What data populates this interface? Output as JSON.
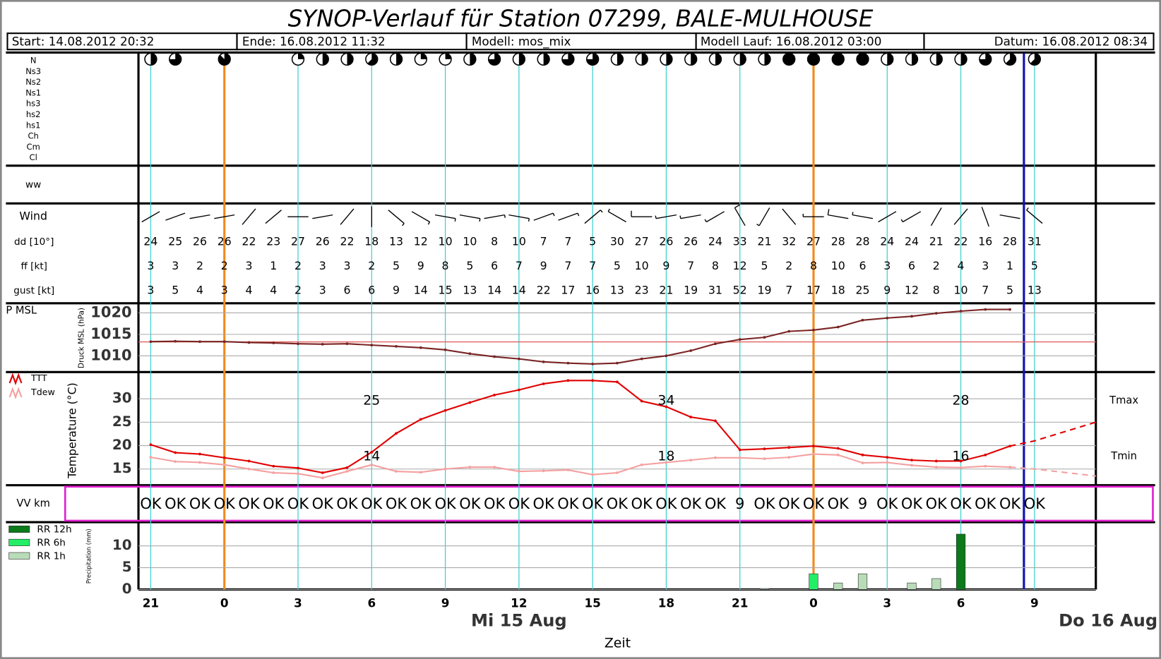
{
  "header": {
    "title": "SYNOP-Verlauf für Station 07299, BALE-MULHOUSE",
    "fields": [
      "Start: 14.08.2012 20:32",
      "Ende: 16.08.2012 11:32",
      "Modell: mos_mix",
      "Modell Lauf: 16.08.2012 03:00",
      "Datum: 16.08.2012 08:34"
    ]
  },
  "chart_data": {
    "type": "meteogram",
    "xlabel": "Zeit",
    "xlim": [
      -3.5,
      35.5
    ],
    "xticks": [
      {
        "value": -3,
        "label": "21"
      },
      0,
      3,
      6,
      9,
      12,
      15,
      18,
      21,
      {
        "value": 24,
        "label": "0"
      },
      {
        "value": 27,
        "label": "3"
      },
      {
        "value": 30,
        "label": "6"
      },
      {
        "value": 33,
        "label": "9"
      }
    ],
    "date_labels": [
      {
        "value": 12,
        "label": "Mi 15 Aug"
      },
      {
        "value": 36,
        "label": "Do 16 Aug"
      }
    ],
    "day_lines": [
      0,
      24
    ],
    "now": 32.57,
    "clouds": {
      "labels": [
        "N",
        "Ns3",
        "Ns2",
        "Ns1",
        "hs3",
        "hs2",
        "hs1",
        "Ch",
        "Cm",
        "Cl"
      ],
      "x": [
        -3,
        -2,
        0,
        3,
        4,
        5,
        6,
        7,
        8,
        9,
        10,
        11,
        12,
        13,
        14,
        15,
        16,
        17,
        18,
        19,
        20,
        21,
        22,
        23,
        24,
        25,
        26,
        27,
        28,
        29,
        30,
        31,
        32,
        33
      ],
      "N": [
        4,
        6,
        7,
        2,
        4,
        4,
        5,
        4,
        2,
        2,
        4,
        6,
        4,
        4,
        6,
        6,
        4,
        4,
        4,
        4,
        4,
        4,
        4,
        8,
        8,
        8,
        8,
        4,
        4,
        4,
        4,
        6,
        5,
        5
      ]
    },
    "ww": {
      "label": "ww"
    },
    "wind": {
      "label": "Wind",
      "rows": [
        "dd [10°]",
        "ff [kt]",
        "gust [kt]"
      ],
      "x": [
        -3,
        -2,
        -1,
        0,
        1,
        2,
        3,
        4,
        5,
        6,
        7,
        8,
        9,
        10,
        11,
        12,
        13,
        14,
        15,
        16,
        17,
        18,
        19,
        20,
        21,
        22,
        23,
        24,
        25,
        26,
        27,
        28,
        29,
        30,
        31,
        32,
        33
      ],
      "dd": [
        24,
        25,
        26,
        26,
        22,
        23,
        27,
        26,
        22,
        18,
        13,
        12,
        10,
        10,
        8,
        10,
        7,
        7,
        5,
        30,
        27,
        26,
        26,
        24,
        33,
        21,
        32,
        27,
        28,
        28,
        24,
        24,
        21,
        22,
        16,
        28,
        31
      ],
      "ff": [
        3,
        3,
        2,
        2,
        3,
        1,
        2,
        3,
        3,
        2,
        5,
        9,
        8,
        5,
        6,
        7,
        9,
        7,
        7,
        5,
        10,
        9,
        7,
        8,
        12,
        5,
        2,
        8,
        10,
        6,
        3,
        6,
        2,
        4,
        3,
        1,
        5
      ],
      "gust": [
        3,
        5,
        4,
        3,
        4,
        4,
        2,
        3,
        6,
        6,
        9,
        14,
        15,
        13,
        14,
        14,
        22,
        17,
        16,
        13,
        23,
        21,
        19,
        31,
        52,
        19,
        7,
        17,
        18,
        25,
        9,
        12,
        8,
        10,
        7,
        5,
        13
      ]
    },
    "pressure": {
      "label": "P MSL",
      "ylabel": "Druck MSL (hPa)",
      "color": "#7a2424",
      "ylim": [
        1006.4,
        1021.9
      ],
      "yticks": [
        1010,
        1015,
        1020
      ],
      "grid": true,
      "reference": 1013.25,
      "reference_color": "#e06060",
      "x": [
        -3,
        -2,
        -1,
        0,
        1,
        2,
        3,
        4,
        5,
        6,
        7,
        8,
        9,
        10,
        11,
        12,
        13,
        14,
        15,
        16,
        17,
        18,
        19,
        20,
        21,
        22,
        23,
        24,
        25,
        26,
        27,
        28,
        29,
        30,
        31,
        32
      ],
      "values": [
        1013.3,
        1013.4,
        1013.3,
        1013.3,
        1013.1,
        1013.0,
        1012.8,
        1012.7,
        1012.8,
        1012.5,
        1012.2,
        1011.9,
        1011.4,
        1010.5,
        1009.8,
        1009.3,
        1008.6,
        1008.3,
        1008.1,
        1008.3,
        1009.3,
        1010.0,
        1011.2,
        1012.8,
        1013.8,
        1014.3,
        1015.7,
        1016.0,
        1016.7,
        1018.3,
        1018.8,
        1019.2,
        1019.9,
        1020.4,
        1020.8,
        1020.8
      ]
    },
    "temperature": {
      "ylabel": "Temperature (°C)",
      "ylim": [
        11.7,
        35.4
      ],
      "yticks": [
        15,
        20,
        25,
        30
      ],
      "grid": true,
      "dashed_after": 32,
      "series": [
        {
          "name": "TTT",
          "color": "#e00000",
          "x": [
            -3,
            -2,
            -1,
            0,
            1,
            2,
            3,
            4,
            5,
            6,
            7,
            8,
            9,
            10,
            11,
            12,
            13,
            14,
            15,
            16,
            17,
            18,
            19,
            20,
            21,
            22,
            23,
            24,
            25,
            26,
            27,
            28,
            29,
            30,
            31,
            32,
            33,
            35.5
          ],
          "values": [
            20.2,
            18.5,
            18.2,
            17.4,
            16.7,
            15.6,
            15.2,
            14.2,
            15.3,
            18.6,
            22.6,
            25.6,
            27.5,
            29.2,
            30.8,
            31.9,
            33.2,
            33.9,
            33.9,
            33.6,
            29.5,
            28.3,
            26.1,
            25.3,
            19.1,
            19.3,
            19.6,
            19.9,
            19.4,
            18.0,
            17.5,
            16.9,
            16.7,
            16.7,
            18.0,
            19.9,
            21.0,
            25.0
          ]
        },
        {
          "name": "Tdew",
          "color": "#f4a0a0",
          "x": [
            -3,
            -2,
            -1,
            0,
            1,
            2,
            3,
            4,
            5,
            6,
            7,
            8,
            9,
            10,
            11,
            12,
            13,
            14,
            15,
            16,
            17,
            18,
            19,
            20,
            21,
            22,
            23,
            24,
            25,
            26,
            27,
            28,
            29,
            30,
            31,
            32,
            33,
            35.5
          ],
          "values": [
            17.5,
            16.6,
            16.4,
            15.9,
            15.0,
            14.2,
            14.0,
            13.1,
            14.5,
            15.9,
            14.5,
            14.3,
            15.0,
            15.4,
            15.4,
            14.5,
            14.6,
            14.8,
            13.8,
            14.2,
            15.9,
            16.4,
            16.9,
            17.4,
            17.4,
            17.2,
            17.5,
            18.2,
            18.0,
            16.3,
            16.4,
            15.8,
            15.4,
            15.3,
            15.6,
            15.4,
            15.0,
            13.5
          ]
        }
      ],
      "tmax": {
        "label": "Tmax",
        "x": [
          6,
          18,
          30
        ],
        "values": [
          25,
          34,
          28
        ]
      },
      "tmin": {
        "label": "Tmin",
        "x": [
          6,
          18,
          30
        ],
        "values": [
          14,
          18,
          16
        ]
      }
    },
    "visibility": {
      "label": "VV km",
      "x": [
        -3,
        -2,
        -1,
        0,
        1,
        2,
        3,
        4,
        5,
        6,
        7,
        8,
        9,
        10,
        11,
        12,
        13,
        14,
        15,
        16,
        17,
        18,
        19,
        20,
        21,
        22,
        23,
        24,
        25,
        26,
        27,
        28,
        29,
        30,
        31,
        32,
        33
      ],
      "values": [
        "OK",
        "OK",
        "OK",
        "OK",
        "OK",
        "OK",
        "OK",
        "OK",
        "OK",
        "OK",
        "OK",
        "OK",
        "OK",
        "OK",
        "OK",
        "OK",
        "OK",
        "OK",
        "OK",
        "OK",
        "OK",
        "OK",
        "OK",
        "OK",
        "9",
        "OK",
        "OK",
        "OK",
        "OK",
        "9",
        "OK",
        "OK",
        "OK",
        "OK",
        "OK",
        "OK",
        "OK"
      ]
    },
    "precipitation": {
      "ylabel": "Precipitation (mm)",
      "ylim": [
        0,
        15.1
      ],
      "yticks": [
        0,
        5,
        10
      ],
      "grid": true,
      "series": [
        {
          "name": "RR 12h",
          "color": "#0a7a1a",
          "x": [
            30
          ],
          "values": [
            12.7
          ]
        },
        {
          "name": "RR 6h",
          "color": "#22ee66",
          "x": [
            24
          ],
          "values": [
            3.6
          ]
        },
        {
          "name": "RR 1h",
          "color": "#b8dcb8",
          "x": [
            22,
            25,
            26,
            28,
            29
          ],
          "values": [
            0.2,
            1.5,
            3.6,
            1.5,
            2.5
          ]
        }
      ]
    }
  }
}
